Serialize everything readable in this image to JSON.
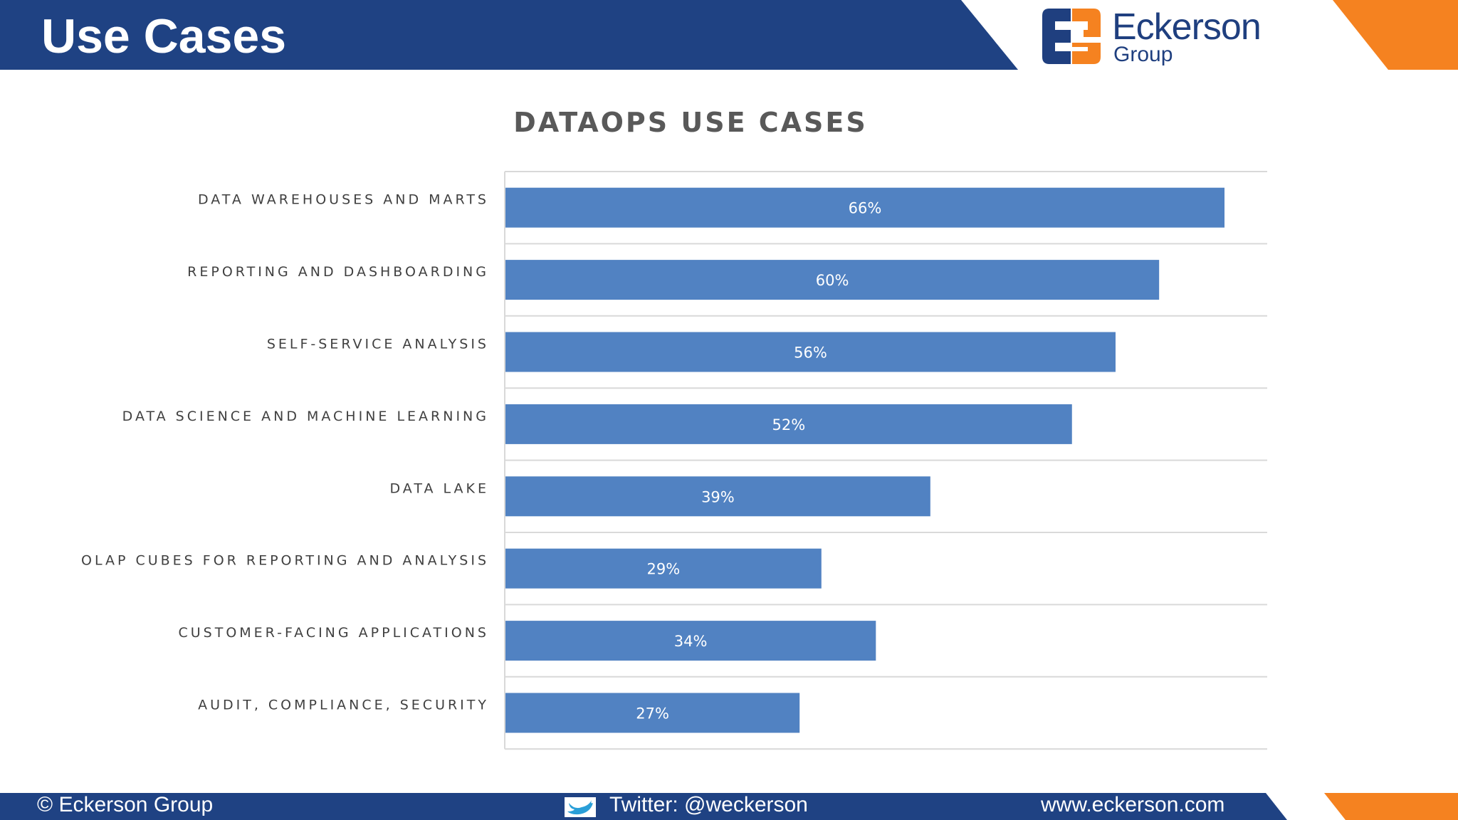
{
  "header": {
    "title": "Use Cases"
  },
  "brand": {
    "name": "Eckerson",
    "sub": "Group",
    "colors": {
      "navy": "#1f3f7f",
      "orange": "#f58220"
    }
  },
  "chart_data": {
    "type": "bar",
    "orientation": "horizontal",
    "title": "DATAOPS USE CASES",
    "categories": [
      "DATA WAREHOUSES AND MARTS",
      "REPORTING AND DASHBOARDING",
      "SELF-SERVICE ANALYSIS",
      "DATA SCIENCE AND MACHINE LEARNING",
      "DATA LAKE",
      "OLAP CUBES FOR REPORTING AND ANALYSIS",
      "CUSTOMER-FACING APPLICATIONS",
      "AUDIT, COMPLIANCE, SECURITY"
    ],
    "values": [
      66,
      60,
      56,
      52,
      39,
      29,
      34,
      27
    ],
    "value_labels": [
      "66%",
      "60%",
      "56%",
      "52%",
      "39%",
      "29%",
      "34%",
      "27%"
    ],
    "xlim": [
      0,
      70
    ],
    "grid": true,
    "bar_color": "#5182c2",
    "xlabel": "",
    "ylabel": ""
  },
  "footer": {
    "copyright": "© Eckerson Group",
    "twitter": "Twitter: @weckerson",
    "website": "www.eckerson.com",
    "icon": "twitter-bird-icon"
  }
}
